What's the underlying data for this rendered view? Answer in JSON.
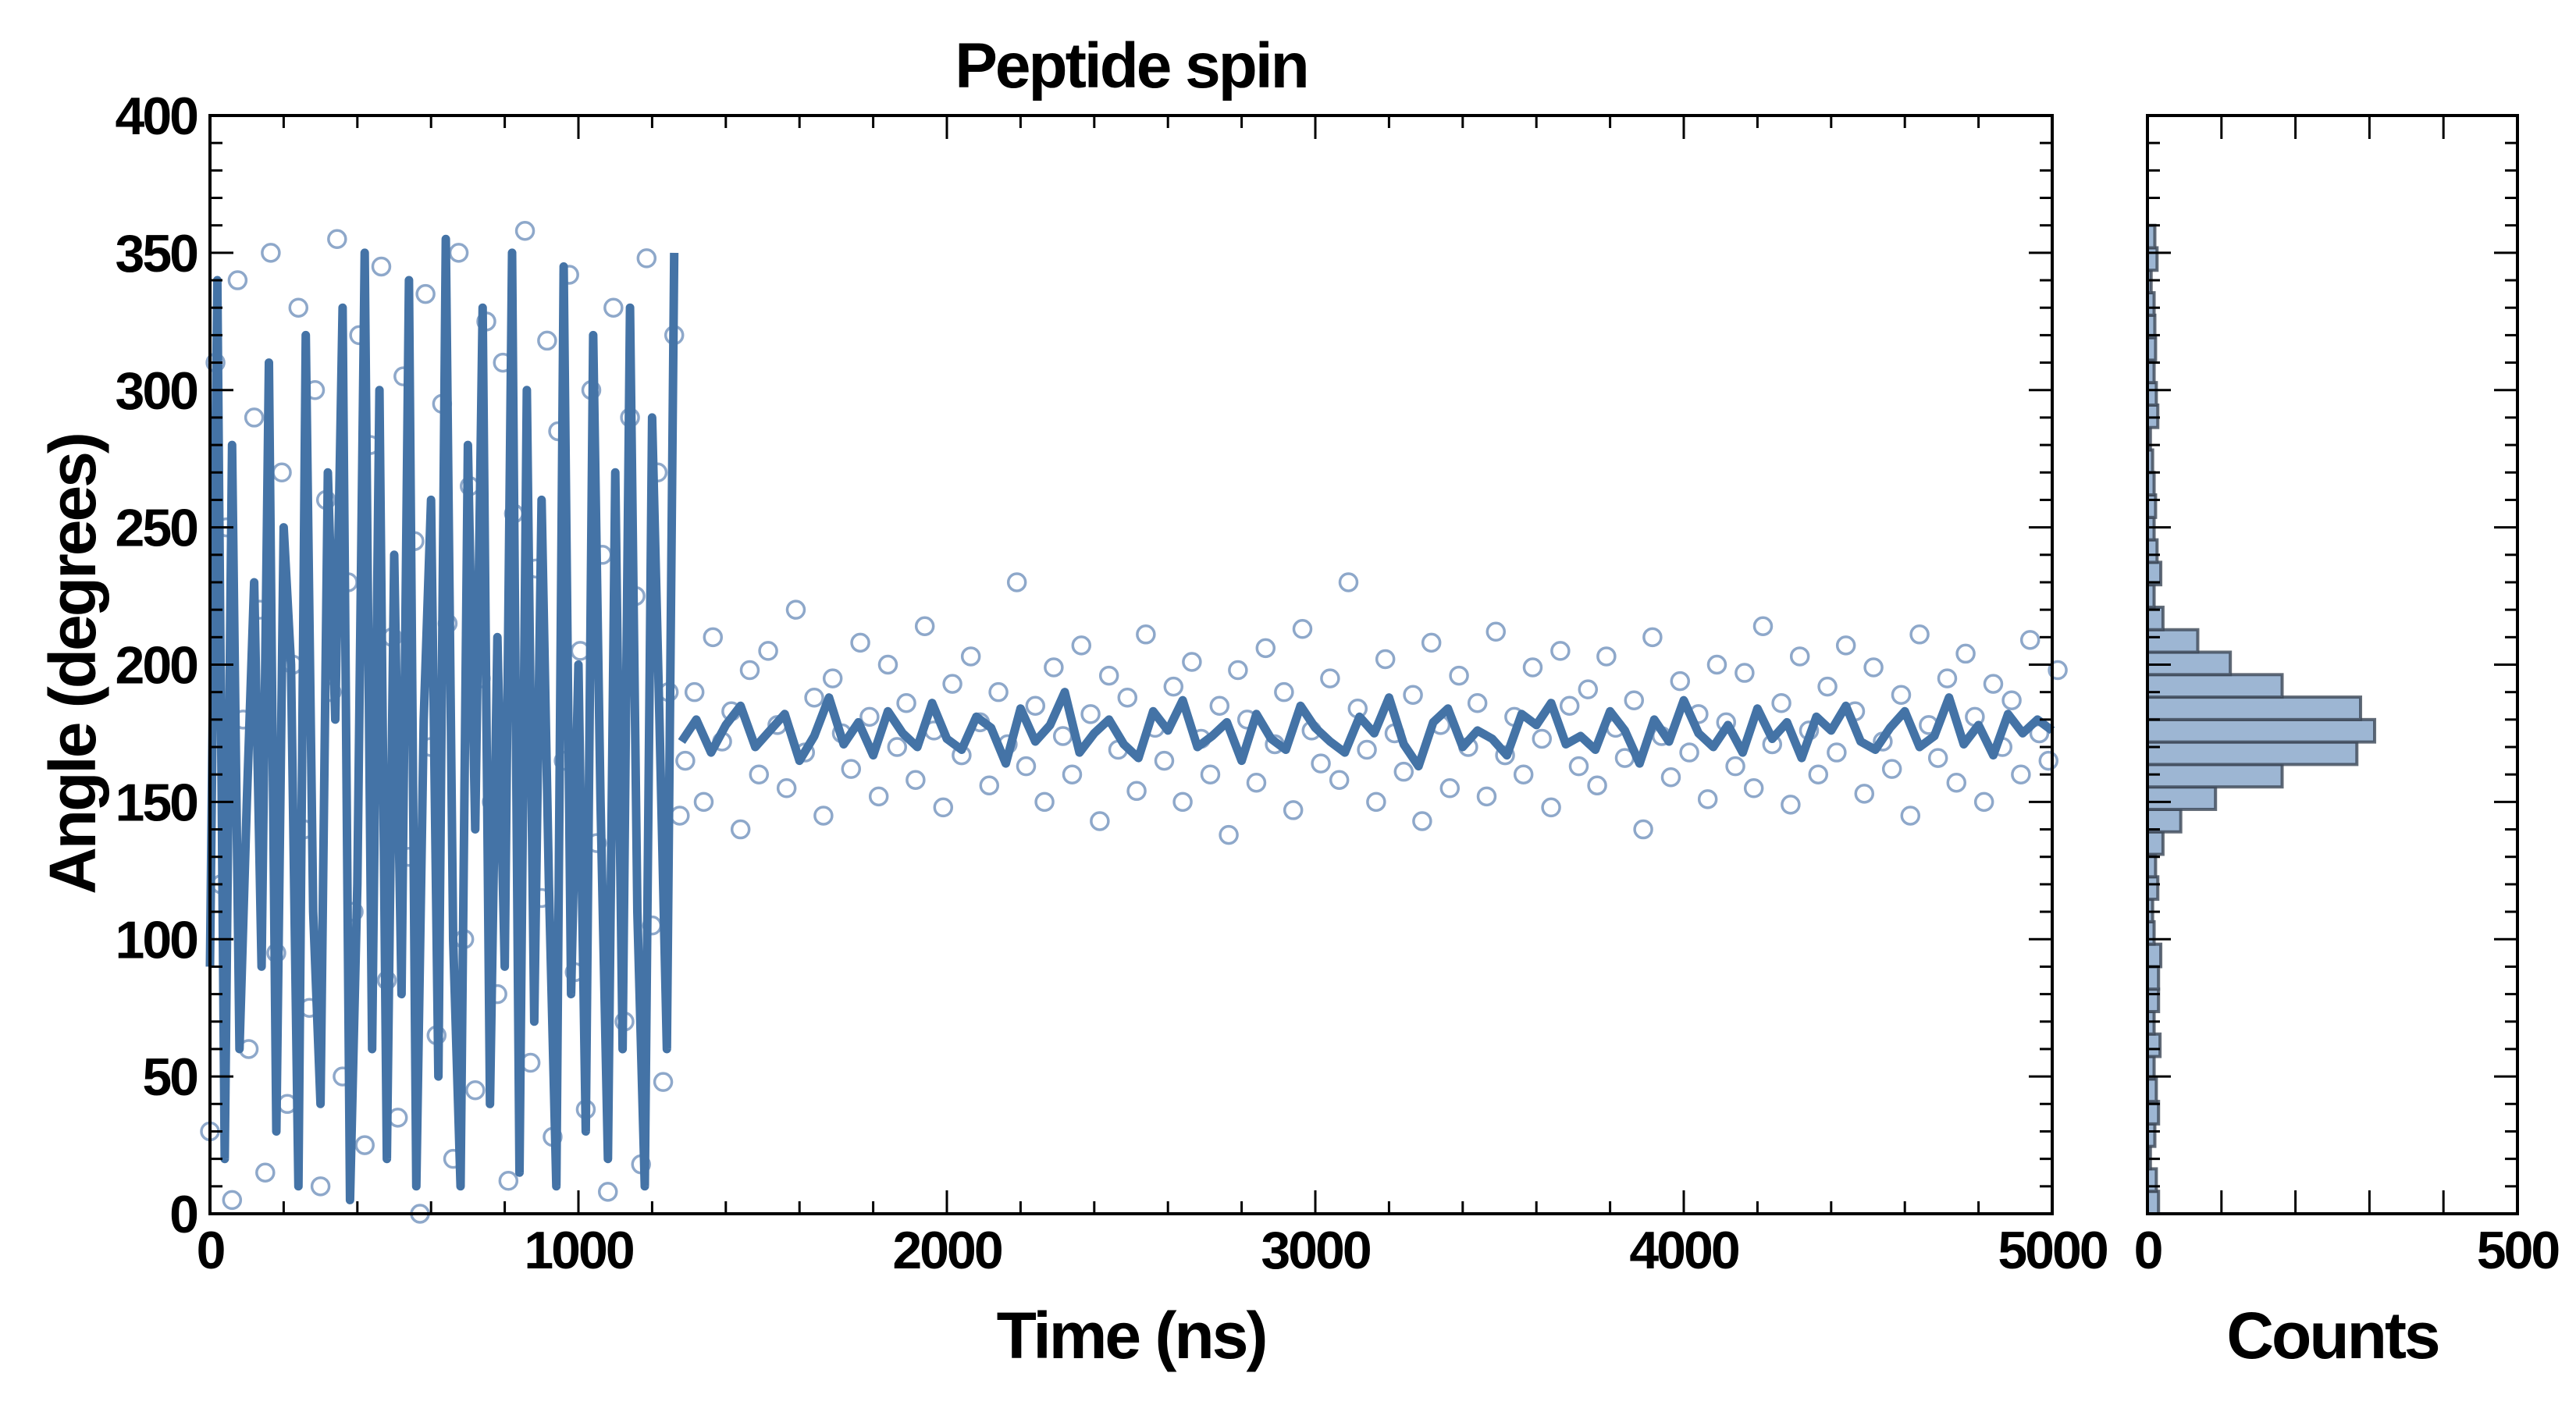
{
  "chart_data": [
    {
      "type": "scatter",
      "title": "Peptide spin",
      "xlabel": "Time (ns)",
      "ylabel": "Angle (degrees)",
      "xlim": [
        0,
        5000
      ],
      "ylim": [
        0,
        400
      ],
      "xticks": [
        "0",
        "1000",
        "2000",
        "3000",
        "4000",
        "5000"
      ],
      "yticks": [
        "0",
        "50",
        "100",
        "150",
        "200",
        "250",
        "300",
        "350",
        "400"
      ],
      "grid": false,
      "colors": {
        "line": "#4473a6",
        "scatter": "#8ea8ca"
      },
      "scatter_segments": [
        {
          "x_start": 0,
          "x_step": 15,
          "y": [
            30,
            310,
            120,
            250,
            5,
            340,
            180,
            60,
            290,
            220,
            15,
            350,
            95,
            270,
            40,
            200,
            330,
            140,
            75,
            300,
            10,
            260,
            190,
            355,
            50,
            230,
            110,
            320,
            25,
            280,
            160,
            345,
            85,
            210,
            35,
            305,
            130,
            245,
            0,
            335,
            170,
            65,
            295,
            215,
            20,
            350,
            100,
            265,
            45,
            195,
            325,
            150,
            80,
            310,
            12,
            255,
            185,
            358,
            55,
            235,
            115,
            318,
            28,
            285,
            165,
            342,
            88,
            205,
            38,
            300,
            135,
            240,
            8,
            330,
            175,
            70,
            290,
            225,
            18,
            348,
            105,
            270,
            48,
            190,
            320,
            145
          ]
        },
        {
          "x_start": 1290,
          "x_step": 25,
          "y": [
            165,
            190,
            150,
            210,
            172,
            183,
            140,
            198,
            160,
            205,
            178,
            155,
            220,
            168,
            188,
            145,
            195,
            175,
            162,
            208,
            181,
            152,
            200,
            170,
            186,
            158,
            214,
            176,
            148,
            193,
            167,
            203,
            179,
            156,
            190,
            171,
            230,
            163,
            185,
            150,
            199,
            174,
            160,
            207,
            182,
            143,
            196,
            169,
            188,
            154,
            211,
            177,
            165,
            192,
            150,
            201,
            173,
            160,
            185,
            138,
            198,
            180,
            157,
            206,
            171,
            190,
            147,
            213,
            176,
            164,
            195,
            158,
            230,
            184,
            169,
            150,
            202,
            175,
            161,
            189,
            143,
            208,
            178,
            155,
            196,
            170,
            186,
            152,
            212,
            167,
            181,
            160,
            199,
            173,
            148,
            205,
            185,
            163,
            191,
            156,
            203,
            177,
            166,
            187,
            140,
            210,
            174,
            159,
            194,
            168,
            182,
            151,
            200,
            179,
            163,
            197,
            155,
            214,
            171,
            186,
            149,
            203,
            176,
            160,
            192,
            168,
            207,
            183,
            153,
            199,
            172,
            162,
            189,
            145,
            211,
            178,
            166,
            195,
            157,
            204,
            181,
            150,
            193,
            170,
            187,
            160,
            209,
            175,
            165,
            198
          ]
        }
      ],
      "line_segments": [
        {
          "x_start": 0,
          "x_step": 20,
          "y": [
            90,
            340,
            20,
            280,
            60,
            150,
            230,
            90,
            310,
            30,
            250,
            200,
            10,
            320,
            110,
            40,
            270,
            180,
            330,
            5,
            120,
            350,
            60,
            300,
            20,
            240,
            80,
            340,
            10,
            180,
            260,
            50,
            355,
            100,
            10,
            280,
            140,
            330,
            40,
            210,
            90,
            350,
            15,
            300,
            70,
            260,
            120,
            10,
            345,
            80,
            200,
            30,
            320,
            150,
            20,
            270,
            60,
            330,
            110,
            10,
            290,
            180,
            60,
            350
          ]
        },
        {
          "x_start": 1280,
          "x_step": 40,
          "y": [
            172,
            180,
            168,
            178,
            185,
            170,
            176,
            182,
            165,
            174,
            188,
            171,
            179,
            167,
            183,
            175,
            170,
            186,
            173,
            169,
            181,
            177,
            164,
            184,
            172,
            178,
            190,
            168,
            175,
            180,
            171,
            166,
            183,
            176,
            187,
            170,
            174,
            179,
            165,
            182,
            173,
            169,
            185,
            177,
            172,
            168,
            181,
            175,
            188,
            171,
            163,
            179,
            184,
            170,
            176,
            173,
            167,
            182,
            178,
            186,
            171,
            174,
            169,
            183,
            176,
            164,
            180,
            172,
            187,
            175,
            170,
            178,
            168,
            184,
            173,
            179,
            166,
            181,
            176,
            185,
            172,
            169,
            177,
            183,
            170,
            174,
            188,
            171,
            178,
            167,
            182,
            175,
            180,
            176
          ]
        }
      ]
    },
    {
      "type": "bar",
      "orientation": "horizontal",
      "xlabel": "Counts",
      "xlim": [
        0,
        500
      ],
      "ylim": [
        0,
        400
      ],
      "xticks": [
        "0",
        "500"
      ],
      "bin_range": [
        0,
        360
      ],
      "colors": {
        "fill": "#9db6d3",
        "edge": "#3c4756"
      },
      "counts": [
        15,
        12,
        4,
        10,
        15,
        12,
        9,
        17,
        9,
        15,
        15,
        18,
        9,
        7,
        14,
        11,
        21,
        45,
        92,
        182,
        283,
        307,
        288,
        182,
        112,
        68,
        21,
        9,
        18,
        13,
        9,
        11,
        9,
        7,
        4,
        14,
        12,
        9,
        11,
        10,
        9,
        5,
        13,
        10
      ]
    }
  ]
}
